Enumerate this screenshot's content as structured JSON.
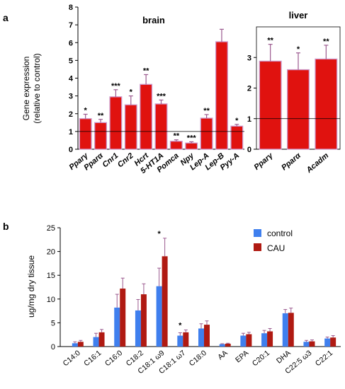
{
  "panel_a": {
    "label": "a",
    "ylabel_line1": "Gene expression",
    "ylabel_line2": "(relative to control)"
  },
  "panel_b": {
    "label": "b",
    "ylabel": "ug/mg dry tissue"
  },
  "colors": {
    "bar_red": "#e0120f",
    "bar_outline": "#cc99cc",
    "control": "#3f7fee",
    "cau": "#b01a12",
    "error": "#9b5a8f"
  },
  "chart_data": [
    {
      "type": "bar",
      "title": "brain",
      "categories": [
        "Pparγ",
        "Pparα",
        "Cnr1",
        "Cnr2",
        "Hcrt",
        "5-HT1A",
        "Pomca",
        "Npy",
        "Lep-A",
        "Lep-B",
        "Pyy-A"
      ],
      "values": [
        1.72,
        1.5,
        2.95,
        2.5,
        3.65,
        2.55,
        0.45,
        0.35,
        1.75,
        6.05,
        1.3
      ],
      "errors": [
        0.25,
        0.18,
        0.4,
        0.5,
        0.55,
        0.22,
        0.08,
        0.07,
        0.2,
        0.7,
        0.1
      ],
      "significance": [
        "*",
        "**",
        "***",
        "*",
        "**",
        "***",
        "**",
        "***",
        "**",
        "",
        "*"
      ],
      "ylim": [
        0,
        8
      ],
      "yticks": [
        0,
        1,
        2,
        3,
        4,
        5,
        6,
        7,
        8
      ],
      "reference_line": 1
    },
    {
      "type": "bar",
      "title": "liver",
      "categories": [
        "Pparγ",
        "Pparα",
        "Acadm"
      ],
      "values": [
        2.88,
        2.6,
        2.95
      ],
      "errors": [
        0.55,
        0.55,
        0.45
      ],
      "significance": [
        "**",
        "*",
        "**"
      ],
      "ylim": [
        0,
        4
      ],
      "yticks": [
        0,
        1,
        2,
        3
      ],
      "reference_line": 1
    },
    {
      "type": "bar",
      "categories": [
        "C14:0",
        "C16:1",
        "C16:0",
        "C18:2",
        "C18:1 ω9",
        "C18:1 ω7",
        "C18:0",
        "AA",
        "EPA",
        "C20:1",
        "DHA",
        "C22:5 ω3",
        "C22:1"
      ],
      "series": [
        {
          "name": "control",
          "values": [
            0.7,
            2.0,
            8.2,
            7.6,
            12.7,
            2.3,
            3.8,
            0.5,
            2.3,
            2.8,
            7.0,
            1.0,
            1.7
          ],
          "errors": [
            0.3,
            0.8,
            2.8,
            2.3,
            3.8,
            0.6,
            1.0,
            0.1,
            0.5,
            0.6,
            0.8,
            0.3,
            0.3
          ]
        },
        {
          "name": "CAU",
          "values": [
            1.0,
            3.0,
            12.2,
            11.0,
            19.0,
            3.0,
            4.6,
            0.6,
            2.6,
            3.2,
            7.1,
            1.1,
            1.9
          ],
          "errors": [
            0.3,
            0.6,
            2.2,
            2.2,
            3.8,
            0.5,
            0.8,
            0.1,
            0.4,
            0.6,
            1.0,
            0.3,
            0.4
          ]
        }
      ],
      "significance": [
        "",
        "",
        "",
        "",
        "*",
        "*",
        "",
        "",
        "",
        "",
        "",
        "",
        ""
      ],
      "ylabel": "ug/mg dry tissue",
      "ylim": [
        0,
        25
      ],
      "yticks": [
        0,
        5,
        10,
        15,
        20,
        25
      ],
      "legend": "top-right"
    }
  ]
}
